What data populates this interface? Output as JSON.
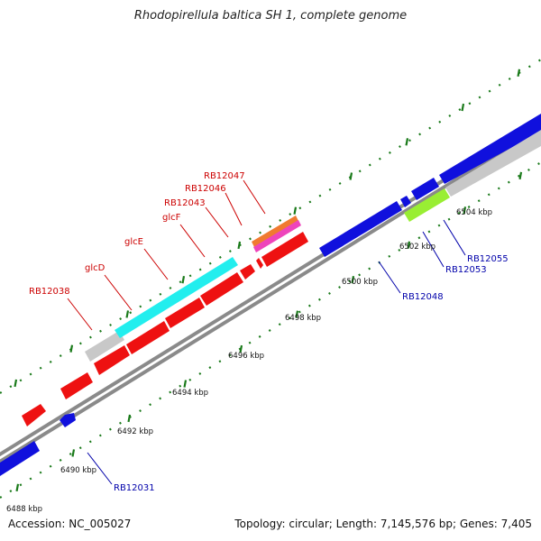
{
  "title": "Rhodopirellula baltica SH 1, complete genome",
  "accession": "Accession: NC_005027",
  "summary": "Topology: circular; Length: 7,145,576 bp; Genes: 7,405",
  "colors": {
    "forward": "#ee1111",
    "reverse": "#1010dd",
    "backbone": "#8a8a8a",
    "ticks": "#1a7a1a",
    "label_forward": "#cc0000",
    "label_reverse": "#0000aa",
    "cyan": "#22eeee",
    "grey_gene": "#c8c8c8",
    "lime": "#99ee33",
    "orange": "#f07a30",
    "magenta": "#ee44bb"
  },
  "scale_labels": [
    "6488 kbp",
    "6490 kbp",
    "6492 kbp",
    "6494 kbp",
    "6496 kbp",
    "6498 kbp",
    "6500 kbp",
    "6502 kbp",
    "6504 kbp"
  ],
  "forward_gene_labels": [
    "RB12038",
    "glcD",
    "glcE",
    "glcF",
    "RB12043",
    "RB12046",
    "RB12047"
  ],
  "reverse_gene_labels": [
    "RB12031",
    "RB12048",
    "RB12053",
    "RB12055"
  ]
}
